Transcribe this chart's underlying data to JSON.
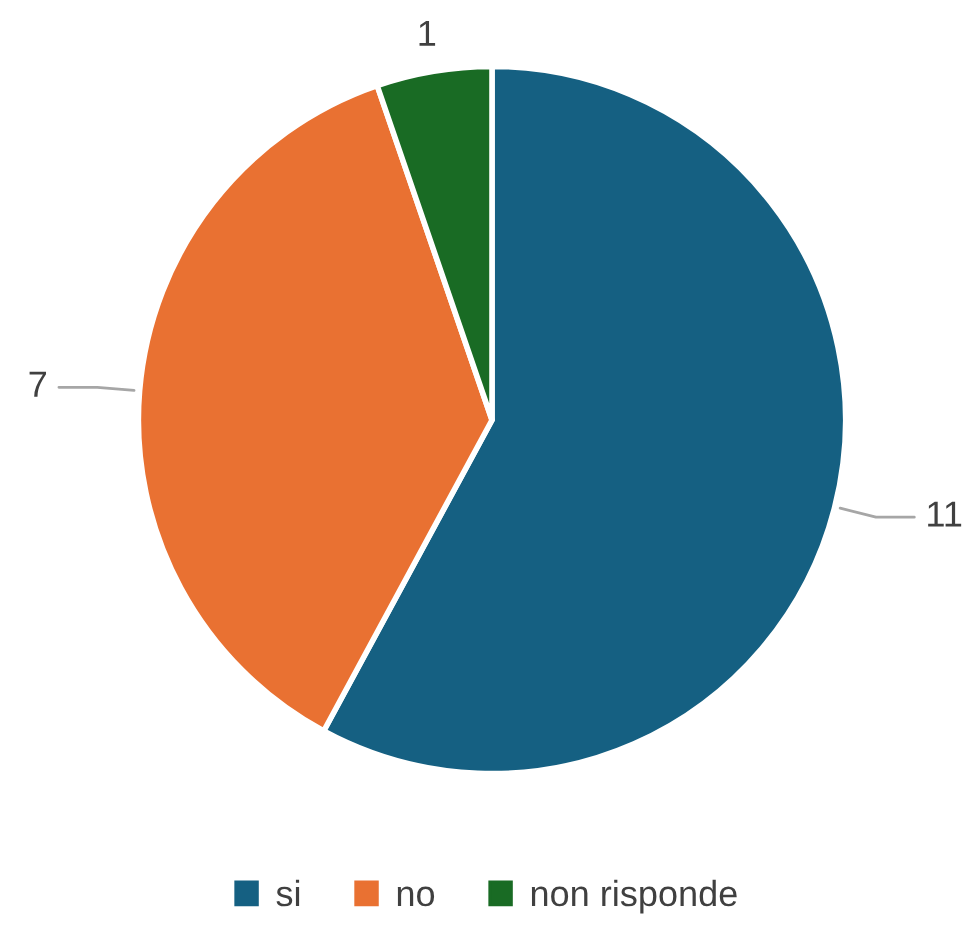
{
  "chart_data": {
    "type": "pie",
    "categories": [
      "si",
      "no",
      "non risponde"
    ],
    "values": [
      11,
      7,
      1
    ],
    "colors": [
      "#156082",
      "#e97132",
      "#196b24"
    ],
    "data_labels": true,
    "legend": "bottom"
  }
}
